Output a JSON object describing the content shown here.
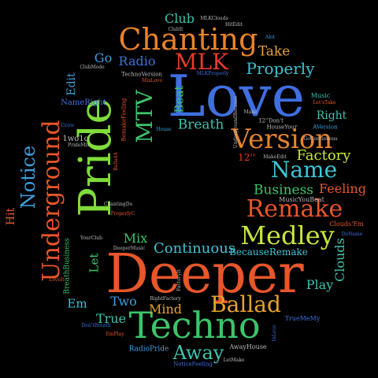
{
  "words": {
    "deeper": {
      "text": "Deeper",
      "color": "#e8562a"
    },
    "love": {
      "text": "Love",
      "color": "#3f6fe0"
    },
    "pride": {
      "text": "Pride",
      "color": "#7fdc3a"
    },
    "techno": {
      "text": "Techno",
      "color": "#3cc46a"
    },
    "chanting": {
      "text": "Chanting",
      "color": "#e8832a"
    },
    "underground": {
      "text": "Underground",
      "color": "#e8562a"
    },
    "version": {
      "text": "Version",
      "color": "#e8832a"
    },
    "medley": {
      "text": "Medley",
      "color": "#c6e83a"
    },
    "remake": {
      "text": "Remake",
      "color": "#e8562a"
    },
    "name": {
      "text": "Name",
      "color": "#3cc4d6"
    },
    "notice": {
      "text": "Notice",
      "color": "#3fa0e0"
    },
    "mlk": {
      "text": "MLK",
      "color": "#e83a2a"
    },
    "ballad": {
      "text": "Ballad",
      "color": "#e8a32a"
    },
    "away": {
      "text": "Away",
      "color": "#3cc4b0"
    },
    "mtv": {
      "text": "MTV",
      "color": "#3cc46a"
    },
    "continuous": {
      "text": "Continuous",
      "color": "#3cc4d6"
    },
    "properly": {
      "text": "Properly",
      "color": "#3cc4d6"
    },
    "factory": {
      "text": "Factory",
      "color": "#c6e83a"
    },
    "business": {
      "text": "Business",
      "color": "#3cc46a"
    },
    "breath": {
      "text": "Breath",
      "color": "#3cc4b0"
    },
    "feeling": {
      "text": "Feeling",
      "color": "#e8562a"
    },
    "take": {
      "text": "Take",
      "color": "#e8a32a"
    },
    "radio": {
      "text": "Radio",
      "color": "#3f6fe0"
    },
    "club": {
      "text": "Club",
      "color": "#3cc4b0"
    },
    "go": {
      "text": "Go",
      "color": "#3fa0e0"
    },
    "mix": {
      "text": "Mix",
      "color": "#3cc46a"
    },
    "play": {
      "text": "Play",
      "color": "#3cc4b0"
    },
    "clouds": {
      "text": "Clouds",
      "color": "#3cc4b0"
    },
    "true": {
      "text": "True",
      "color": "#3cc4b0"
    },
    "mind": {
      "text": "Mind",
      "color": "#e8a32a"
    },
    "two": {
      "text": "Two",
      "color": "#3fa0e0"
    },
    "em": {
      "text": "Em",
      "color": "#3cc4d6"
    },
    "let": {
      "text": "Let",
      "color": "#3cc46a"
    },
    "beat": {
      "text": "Beat",
      "color": "#3cc46a"
    },
    "edit": {
      "text": "Edit",
      "color": "#3fa0e0"
    },
    "hit": {
      "text": "Hit",
      "color": "#e8562a"
    },
    "right": {
      "text": "Right",
      "color": "#3cc4b0"
    },
    "music": {
      "text": "Music",
      "color": "#3cc4b0"
    },
    "because_remake": {
      "text": "BecauseRemake",
      "color": "#3cc4d6"
    },
    "name_right": {
      "text": "NameRight",
      "color": "#3f6fe0"
    },
    "twelve_inch": {
      "text": "12''",
      "color": "#e83a2a"
    },
    "twelve_inch_dont": {
      "text": "12''Don't",
      "color": "#bbbbbb"
    },
    "one_two_go": {
      "text": "1wo1o",
      "color": "#bbbbbb"
    },
    "pride_mix": {
      "text": "PrideMix",
      "color": "#bbbbbb"
    },
    "clouds_em": {
      "text": "Clouds'Em",
      "color": "#e8562a"
    },
    "music_you_beat": {
      "text": "MusicYouBeat",
      "color": "#bbbbbb"
    },
    "breath_business": {
      "text": "BreathBusiness",
      "color": "#3cc46a"
    },
    "true_me_my": {
      "text": "TrueMeMy",
      "color": "#3f6fe0"
    },
    "away_house": {
      "text": "AwayHouse",
      "color": "#bbbbbb"
    },
    "radio_pride": {
      "text": "RadioPride",
      "color": "#3fa0e0"
    },
    "house_your": {
      "text": "HouseYour",
      "color": "#bbbbbb"
    },
    "make_edit": {
      "text": "MakeEdit",
      "color": "#bbbbbb"
    },
    "mlk_clouds": {
      "text": "MLKClouds",
      "color": "#bbbbbb"
    },
    "hit_edit": {
      "text": "HitEdit",
      "color": "#bbbbbb"
    },
    "club_it": {
      "text": "ClubIt",
      "color": "#bbbbbb"
    },
    "techno_version": {
      "text": "TechnoVersion",
      "color": "#bbbbbb"
    },
    "mix_love": {
      "text": "MixLove",
      "color": "#e8562a"
    },
    "lets_take": {
      "text": "Let'sTake",
      "color": "#e8562a"
    },
    "a_version": {
      "text": "AVersion",
      "color": "#3fa0e0"
    },
    "chanting_do": {
      "text": "ChantingDo",
      "color": "#bbbbbb"
    },
    "properly_c": {
      "text": "ProperlyC",
      "color": "#e8562a"
    },
    "your_club": {
      "text": "YourClub",
      "color": "#bbbbbb"
    },
    "deeper_music": {
      "text": "DeeperMusic",
      "color": "#bbbbbb"
    },
    "love_it": {
      "text": "LoveIt",
      "color": "#e8562a"
    },
    "right_factory": {
      "text": "RightFactory",
      "color": "#bbbbbb"
    },
    "em_play": {
      "text": "EmPlay",
      "color": "#e8562a"
    },
    "do_name": {
      "text": "DoName",
      "color": "#3f6fe0"
    },
    "let_make": {
      "text": "LetMake",
      "color": "#bbbbbb"
    },
    "notice_feeling": {
      "text": "NoticeFeeling",
      "color": "#3f6fe0"
    },
    "ballad_a": {
      "text": "BalladA",
      "color": "#e8562a"
    },
    "remake_feeling": {
      "text": "RemakeFeeling",
      "color": "#e8562a"
    },
    "underground_because": {
      "text": "UndergroundBecause",
      "color": "#bbbbbb"
    },
    "go_continuous": {
      "text": "GoContinuous",
      "color": "#bbbbbb"
    },
    "factory_it": {
      "text": "FactoryIt",
      "color": "#bbbbbb"
    },
    "intro": {
      "text": "InLove",
      "color": "#3f6fe0"
    },
    "house": {
      "text": "House",
      "color": "#3fa0e0"
    },
    "make": {
      "text": "Make",
      "color": "#bbbbbb"
    },
    "alot": {
      "text": "Alot",
      "color": "#3fa0e0"
    },
    "club_mode": {
      "text": "ClubMode",
      "color": "#bbbbbb"
    },
    "grow_old": {
      "text": "Grow",
      "color": "#3f6fe0"
    },
    "dont_breath": {
      "text": "Don'tBreath",
      "color": "#3f6fe0"
    },
    "mlk_properly": {
      "text": "MLKProperly",
      "color": "#3f6fe0"
    }
  }
}
